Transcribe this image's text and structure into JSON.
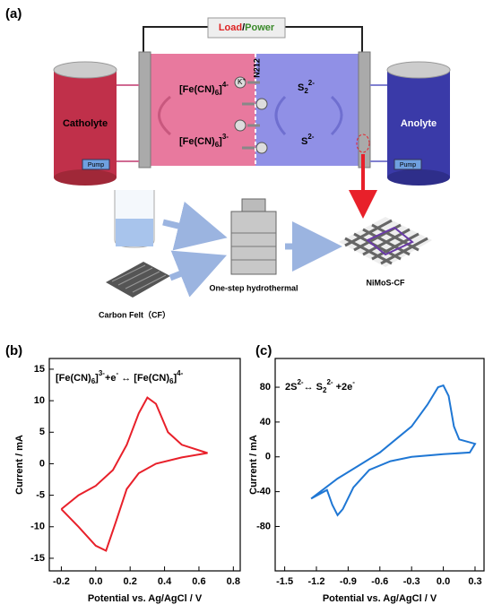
{
  "diagram": {
    "panel": "(a)",
    "load": "Load",
    "slash": "/",
    "power": "Power",
    "catholyte": "Catholyte",
    "anolyte": "Anolyte",
    "pump_left": "Pump",
    "pump_right": "Pump",
    "membrane": "N212",
    "fe_top": [
      "[Fe(CN)",
      "6",
      "]",
      "4-"
    ],
    "fe_bottom": [
      "[Fe(CN)",
      "6",
      "]",
      "3-"
    ],
    "s_top": [
      "S",
      "2",
      "2-"
    ],
    "s_bottom": [
      "S",
      "2-"
    ],
    "ion": [
      "K",
      "+"
    ],
    "hydrothermal": "One-step hydrothermal",
    "product": "NiMoS-CF",
    "felt": "Carbon Felt（CF）"
  },
  "chart_data": [
    {
      "type": "line",
      "panel": "(b)",
      "equation": [
        "[Fe(CN)",
        "6",
        "]",
        "3-",
        "+e",
        "-",
        " ↔  [Fe(CN)",
        "6",
        "]",
        "4-"
      ],
      "xlabel": "Potential vs. Ag/AgCl / V",
      "ylabel": "Current / mA",
      "color": "#e8202a",
      "x": [
        -0.2,
        -0.1,
        0.0,
        0.1,
        0.18,
        0.25,
        0.3,
        0.35,
        0.42,
        0.5,
        0.65,
        0.5,
        0.35,
        0.25,
        0.18,
        0.12,
        0.06,
        0.0,
        -0.1,
        -0.2
      ],
      "values": [
        -7.2,
        -5,
        -3.5,
        -1,
        3,
        8,
        10.5,
        9.5,
        5,
        3,
        1.7,
        1,
        0,
        -1.5,
        -4,
        -9,
        -13.8,
        -13,
        -10,
        -7.2
      ],
      "xlim": [
        -0.27,
        0.84
      ],
      "ylim": [
        -17,
        16.7
      ],
      "xticks": [
        -0.2,
        {
          "value": 0,
          "label": "0.0"
        },
        0.2,
        0.4,
        0.6,
        0.8
      ],
      "yticks": [
        15,
        10,
        5,
        0,
        -5,
        -10,
        -15
      ]
    },
    {
      "type": "line",
      "panel": "(c)",
      "equation": [
        "2S",
        "2-",
        "↔ S",
        "2",
        "2-",
        " +2e",
        "-"
      ],
      "xlabel": "Potential vs. Ag/AgCl / V",
      "ylabel": "Current / mA",
      "color": "#1f77d4",
      "x": [
        -1.25,
        -1.0,
        -0.8,
        -0.6,
        -0.45,
        -0.3,
        -0.15,
        -0.05,
        0.0,
        0.05,
        0.1,
        0.15,
        0.3,
        0.25,
        0.0,
        -0.3,
        -0.5,
        -0.7,
        -0.85,
        -0.95,
        -1.0,
        -1.05,
        -1.1,
        -1.25
      ],
      "values": [
        -48,
        -25,
        -10,
        5,
        20,
        35,
        60,
        80,
        82,
        70,
        35,
        20,
        15,
        5,
        3,
        0,
        -5,
        -15,
        -35,
        -60,
        -67,
        -55,
        -38,
        -48
      ],
      "xlim": [
        -1.59,
        0.385
      ],
      "ylim": [
        -131,
        113
      ],
      "xticks": [
        -1.5,
        -1.2,
        -0.9,
        -0.6,
        -0.3,
        {
          "value": 0,
          "label": "0.0"
        },
        0.3
      ],
      "yticks": [
        80,
        40,
        0,
        -40,
        -80
      ]
    }
  ]
}
